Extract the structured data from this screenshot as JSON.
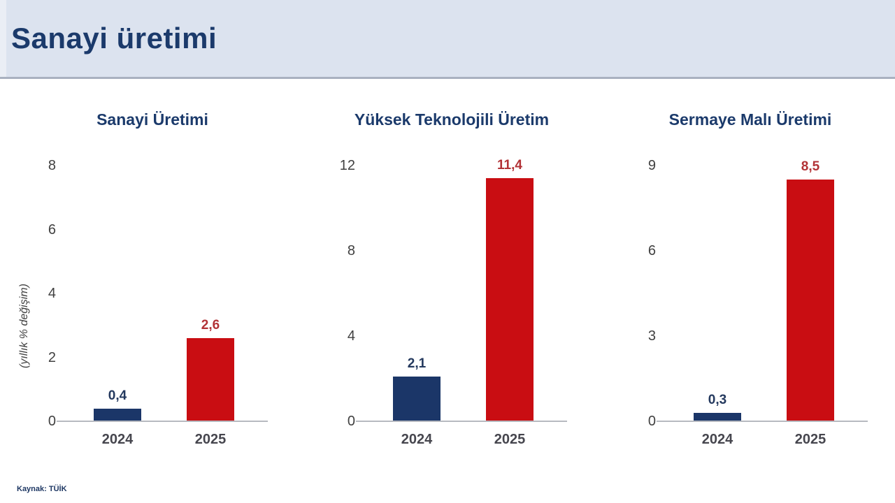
{
  "header": {
    "title": "Sanayi üretimi"
  },
  "footer": {
    "source": "Kaynak: TÜİK"
  },
  "axis_label": "(yıllık % değişim)",
  "colors": {
    "header_bg": "#dce3ef",
    "title_navy": "#1b3a6b",
    "navy_bar": "#1b3668",
    "red_bar": "#c90d12",
    "navy_label": "#24395e",
    "red_label": "#b23236",
    "tick_gray": "#404040",
    "axis_line_gray": "#b7bac0"
  },
  "chart_data": [
    {
      "type": "bar",
      "title": "Sanayi Üretimi",
      "categories": [
        "2024",
        "2025"
      ],
      "values": [
        0.4,
        2.6
      ],
      "value_labels": [
        "0,4",
        "2,6"
      ],
      "yticks": [
        0,
        2,
        4,
        6,
        8
      ],
      "ylim": [
        0,
        8
      ],
      "ylabel": "(yıllık % değişim)",
      "bar_colors": [
        "#1b3668",
        "#c90d12"
      ],
      "label_colors": [
        "#24395e",
        "#b23236"
      ],
      "grid": false,
      "legend": false
    },
    {
      "type": "bar",
      "title": "Yüksek Teknolojili Üretim",
      "categories": [
        "2024",
        "2025"
      ],
      "values": [
        2.1,
        11.4
      ],
      "value_labels": [
        "2,1",
        "11,4"
      ],
      "yticks": [
        0,
        4,
        8,
        12
      ],
      "ylim": [
        0,
        12
      ],
      "ylabel": "",
      "bar_colors": [
        "#1b3668",
        "#c90d12"
      ],
      "label_colors": [
        "#24395e",
        "#b23236"
      ],
      "grid": false,
      "legend": false
    },
    {
      "type": "bar",
      "title": "Sermaye Malı Üretimi",
      "categories": [
        "2024",
        "2025"
      ],
      "values": [
        0.3,
        8.5
      ],
      "value_labels": [
        "0,3",
        "8,5"
      ],
      "yticks": [
        0,
        3,
        6,
        9
      ],
      "ylim": [
        0,
        9
      ],
      "ylabel": "",
      "bar_colors": [
        "#1b3668",
        "#c90d12"
      ],
      "label_colors": [
        "#24395e",
        "#b23236"
      ],
      "grid": false,
      "legend": false
    }
  ]
}
